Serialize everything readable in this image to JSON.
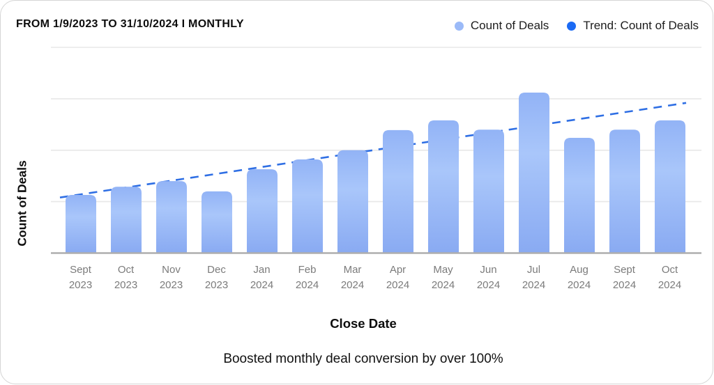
{
  "header": {
    "range_label": "FROM 1/9/2023 TO 31/10/2024 I MONTHLY"
  },
  "legend": {
    "items": [
      {
        "label": "Count of Deals",
        "color": "#9bbaf8"
      },
      {
        "label": "Trend: Count of Deals",
        "color": "#1b6af4"
      }
    ]
  },
  "caption": "Boosted monthly deal conversion by over 100%",
  "chart_data": {
    "type": "bar",
    "title": "",
    "xlabel": "Close Date",
    "ylabel": "Count of Deals",
    "categories": [
      "Sept 2023",
      "Oct 2023",
      "Nov 2023",
      "Dec 2023",
      "Jan 2024",
      "Feb 2024",
      "Mar 2024",
      "Apr 2024",
      "May 2024",
      "Jun 2024",
      "Jul 2024",
      "Aug 2024",
      "Sept 2024",
      "Oct 2024"
    ],
    "series": [
      {
        "name": "Count of Deals",
        "type": "bar",
        "values": [
          11.3,
          12.9,
          14.0,
          12.0,
          16.3,
          18.2,
          20.0,
          23.9,
          25.8,
          24.0,
          31.2,
          22.4,
          24.0,
          25.8
        ]
      },
      {
        "name": "Trend: Count of Deals",
        "type": "line",
        "style": "dashed",
        "start_value": 10.8,
        "end_value": 29.2
      }
    ],
    "ylim": [
      0,
      40
    ],
    "y_gridlines": [
      10,
      20,
      30,
      40
    ],
    "y_tick_labels_visible": false,
    "grid": "horizontal",
    "legend_position": "top-right",
    "colors": {
      "bar_gradient_top": "#92b3f6",
      "bar_gradient_mid": "#a9c6fa",
      "bar_gradient_bottom": "#89aaf2",
      "trend_line": "#2f6fe4",
      "gridline": "#e7e7e7",
      "axis_line": "#aeaeae"
    }
  }
}
